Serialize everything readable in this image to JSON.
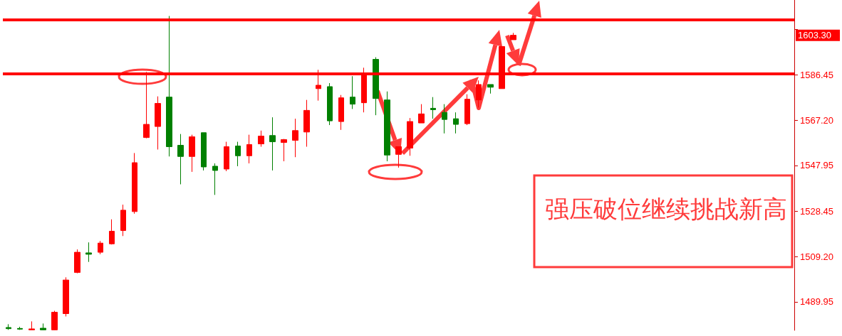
{
  "chart_data": {
    "type": "candlestick",
    "categories": [
      null,
      null,
      null,
      null,
      null,
      null,
      null,
      null,
      null,
      null,
      null,
      null,
      null,
      null,
      null,
      null,
      null,
      null,
      null,
      null,
      null,
      null,
      null,
      null,
      null,
      null,
      null,
      null,
      null,
      null,
      null,
      null,
      null,
      null,
      null,
      null,
      null,
      null,
      null,
      null,
      null,
      null,
      null,
      null,
      null,
      null,
      null,
      null,
      null,
      null,
      null,
      null,
      null,
      null,
      null,
      null,
      null,
      null,
      null,
      null,
      null,
      null,
      null,
      null,
      null,
      null,
      null,
      null,
      null
    ],
    "ohlc": [
      [
        1479.0,
        1480.4,
        1478.0,
        1478.5
      ],
      [
        1478.6,
        1479.3,
        1478.0,
        1478.3
      ],
      [
        1478.0,
        1481.6,
        1478.0,
        1478.4
      ],
      [
        1478.7,
        1480.7,
        1477.9,
        1478.0
      ],
      [
        1478.0,
        1486.1,
        1477.9,
        1485.5
      ],
      [
        1484.9,
        1500.35,
        1483.7,
        1499.2
      ],
      [
        1502.4,
        1512.2,
        1502.1,
        1511.0
      ],
      [
        1510.75,
        1515.2,
        1506.9,
        1510.15
      ],
      [
        1511.0,
        1515.8,
        1510.15,
        1514.9
      ],
      [
        1514.6,
        1525.0,
        1514.3,
        1519.95
      ],
      [
        1520.25,
        1531.25,
        1517.9,
        1528.9
      ],
      [
        1528.3,
        1553.2,
        1527.4,
        1549.1
      ],
      [
        1559.8,
        1587.7,
        1559.5,
        1565.4
      ],
      [
        1564.5,
        1577.3,
        1554.7,
        1574.3
      ],
      [
        1577.0,
        1611.5,
        1551.75,
        1555.9
      ],
      [
        1556.5,
        1561.3,
        1539.9,
        1551.75
      ],
      [
        1551.75,
        1561.0,
        1545.2,
        1560.1
      ],
      [
        1561.85,
        1561.85,
        1545.8,
        1547.3
      ],
      [
        1547.6,
        1548.8,
        1535.4,
        1545.8
      ],
      [
        1546.4,
        1558.0,
        1545.5,
        1555.9
      ],
      [
        1556.2,
        1558.0,
        1547.6,
        1552.05
      ],
      [
        1552.05,
        1561.0,
        1548.8,
        1556.8
      ],
      [
        1557.1,
        1562.75,
        1555.9,
        1560.4
      ],
      [
        1560.65,
        1568.4,
        1545.8,
        1558.0
      ],
      [
        1557.7,
        1559.2,
        1549.7,
        1558.9
      ],
      [
        1558.6,
        1567.8,
        1551.45,
        1562.75
      ],
      [
        1562.15,
        1575.8,
        1555.9,
        1571.35
      ],
      [
        1580.6,
        1588.6,
        1575.5,
        1582.05
      ],
      [
        1581.45,
        1582.95,
        1565.1,
        1566.9
      ],
      [
        1566.6,
        1577.9,
        1563.05,
        1576.7
      ],
      [
        1577.0,
        1585.9,
        1571.95,
        1574.0
      ],
      [
        1574.6,
        1589.5,
        1570.5,
        1587.1
      ],
      [
        1593.05,
        1593.95,
        1569.3,
        1576.4
      ],
      [
        1575.8,
        1579.4,
        1549.7,
        1552.35
      ],
      [
        1552.65,
        1555.9,
        1547.0,
        1555.9
      ],
      [
        1555.3,
        1568.1,
        1552.05,
        1566.6
      ],
      [
        1566.0,
        1574.0,
        1566.0,
        1569.85
      ],
      [
        1572.25,
        1577.0,
        1567.8,
        1571.65
      ],
      [
        1570.5,
        1574.0,
        1561.55,
        1567.5
      ],
      [
        1567.8,
        1570.5,
        1561.55,
        1565.4
      ],
      [
        1565.7,
        1578.2,
        1565.1,
        1576.1
      ],
      [
        1575.8,
        1584.1,
        1572.55,
        1582.35
      ],
      [
        1582.35,
        1582.35,
        1578.5,
        1581.2
      ],
      [
        1580.6,
        1598.5,
        1580.6,
        1598.5
      ],
      [
        1601.4,
        1604.3,
        1601.4,
        1603.3
      ],
      null,
      null,
      null,
      null,
      null,
      null,
      null,
      null,
      null,
      null,
      null,
      null,
      null,
      null,
      null,
      null,
      null,
      null,
      null,
      null,
      null,
      null,
      null,
      null
    ],
    "colors": [
      "#008000",
      "#008000",
      "#ff0000",
      "#008000",
      "#ff0000",
      "#ff0000",
      "#ff0000",
      "#008000",
      "#ff0000",
      "#ff0000",
      "#ff0000",
      "#ff0000",
      "#ff0000",
      "#ff0000",
      "#008000",
      "#008000",
      "#ff0000",
      "#008000",
      "#008000",
      "#ff0000",
      "#008000",
      "#ff0000",
      "#ff0000",
      "#008000",
      "#ff0000",
      "#ff0000",
      "#ff0000",
      "#ff0000",
      "#008000",
      "#ff0000",
      "#008000",
      "#ff0000",
      "#008000",
      "#008000",
      "#ff0000",
      "#ff0000",
      "#ff0000",
      "#008000",
      "#008000",
      "#008000",
      "#ff0000",
      "#ff0000",
      "#008000",
      "#ff0000",
      "#ff0000",
      null,
      null,
      null,
      null,
      null,
      null,
      null,
      null,
      null,
      null,
      null,
      null,
      null,
      null,
      null,
      null,
      null,
      null,
      null,
      null,
      null,
      null,
      null,
      null
    ],
    "ylim": [
      1477.8,
      1618.3
    ],
    "yticks": [
      1489.95,
      {
        "value": 1509.2,
        "label": "1509.20"
      },
      1528.45,
      1547.95,
      {
        "value": 1567.2,
        "label": "1567.20"
      },
      1586.45,
      {
        "value": 1605.7,
        "label": null
      }
    ],
    "ref_lines": [
      {
        "axis": "y",
        "value": 1610.0,
        "color": "#ff0000"
      },
      {
        "axis": "y",
        "value": 1587.1,
        "color": "#ff0000"
      }
    ],
    "annotations": [
      "1603.30",
      "强压破位继续挑战新高"
    ],
    "grid": false
  }
}
